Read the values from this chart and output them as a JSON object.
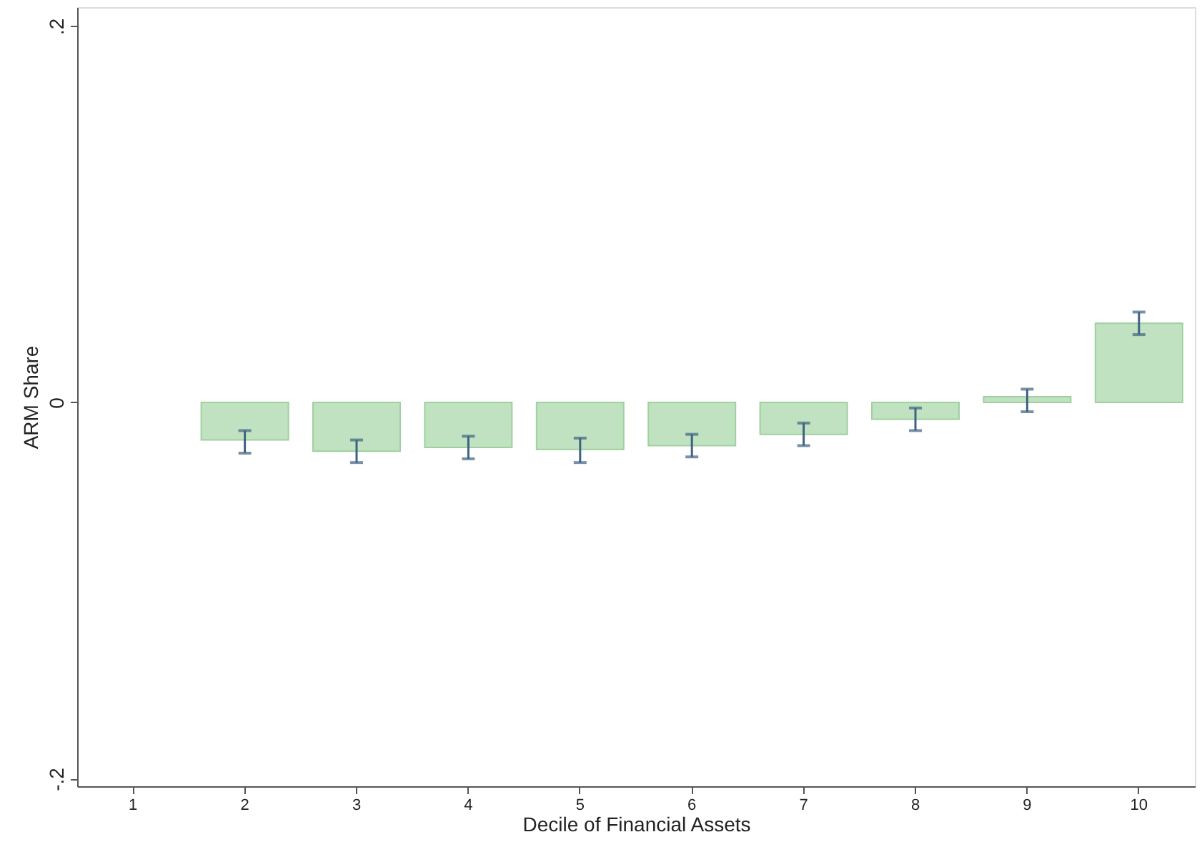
{
  "chart_data": {
    "type": "bar",
    "xlabel": "Decile of Financial Assets",
    "ylabel": "ARM Share",
    "categories": [
      "1",
      "2",
      "3",
      "4",
      "5",
      "6",
      "7",
      "8",
      "9",
      "10"
    ],
    "values": [
      null,
      -0.02,
      -0.026,
      -0.024,
      -0.025,
      -0.023,
      -0.017,
      -0.009,
      0.003,
      0.042
    ],
    "errors": [
      null,
      [
        -0.027,
        -0.015
      ],
      [
        -0.032,
        -0.02
      ],
      [
        -0.03,
        -0.018
      ],
      [
        -0.032,
        -0.019
      ],
      [
        -0.029,
        -0.017
      ],
      [
        -0.023,
        -0.011
      ],
      [
        -0.015,
        -0.003
      ],
      [
        -0.005,
        0.007
      ],
      [
        0.036,
        0.048
      ]
    ],
    "color": "#c0e2c0",
    "ylim": [
      -0.204,
      0.21
    ],
    "yticks": [
      {
        "value": -0.2,
        "label": "-.2"
      },
      0,
      {
        "value": 0.2,
        "label": ".2"
      }
    ],
    "grid": false
  }
}
